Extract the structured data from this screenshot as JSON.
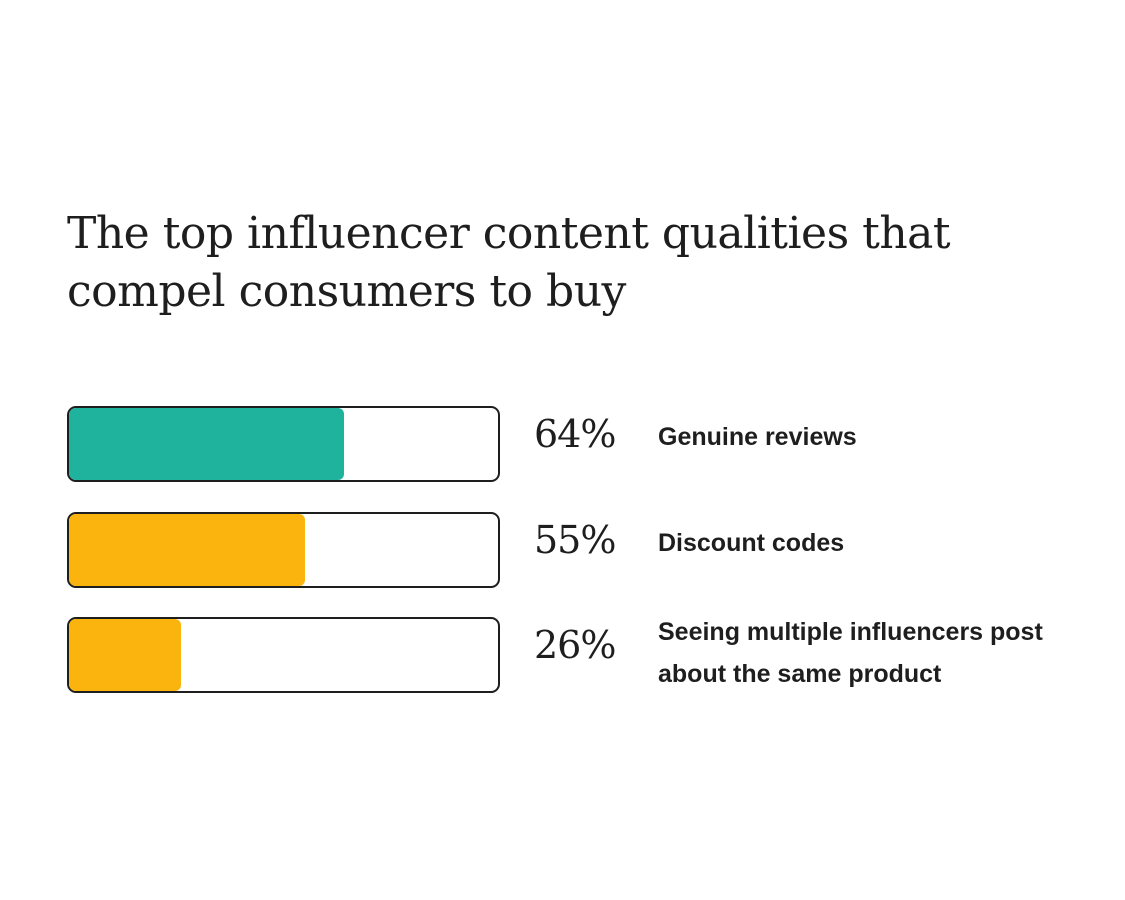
{
  "chart_data": {
    "type": "bar",
    "title": "The top influencer content qualities that compel consumers to buy",
    "categories": [
      "Genuine reviews",
      "Discount codes",
      "Seeing multiple influencers post about the same product"
    ],
    "values": [
      64,
      55,
      26
    ],
    "value_labels": [
      "64%",
      "55%",
      "26%"
    ],
    "ylim": [
      0,
      100
    ],
    "colors": [
      "#1fb39e",
      "#fbb30e",
      "#fbb30e"
    ],
    "orientation": "horizontal",
    "grid": false,
    "legend": "none"
  }
}
